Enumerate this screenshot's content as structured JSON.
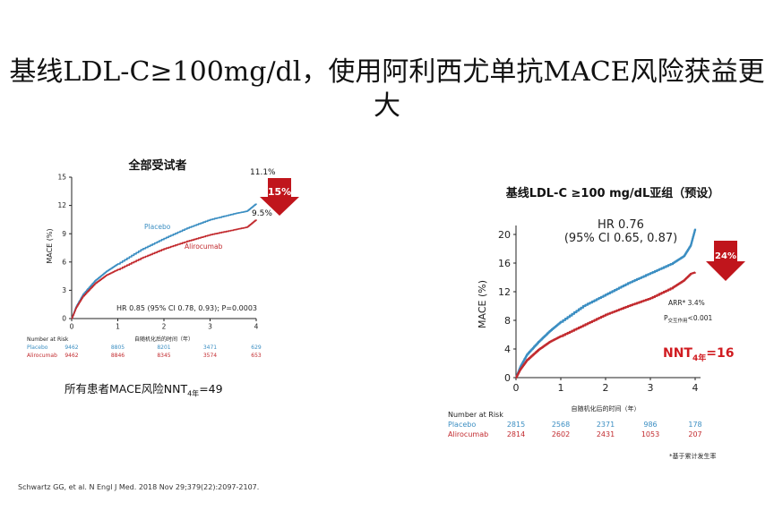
{
  "title": {
    "line1": "基线LDL-C≥100mg/dl，使用阿利西尤单抗MACE风险获益更",
    "line2": "大"
  },
  "left_panel": {
    "heading": "全部受试者",
    "nnt_prefix": "所有患者MACE风险NNT",
    "nnt_sub": "4年",
    "nnt_value": "=49"
  },
  "right_panel": {
    "heading": "基线LDL-C ≥100 mg/dL亚组（预设）",
    "arr_label": "ARR* 3.4%",
    "p_prefix": "P",
    "p_sub": "交互作用",
    "p_value": "<0.001",
    "nnt_prefix": "NNT",
    "nnt_sub": "4年",
    "nnt_value": "=16",
    "footnote": "*基于累计发生率"
  },
  "reference": "Schwartz GG, et al. N Engl J Med. 2018 Nov 29;379(22):2097-2107.",
  "colors": {
    "placebo": "#3b8ec2",
    "alirocumab": "#c22a2e",
    "arrow": "#c0151c"
  },
  "chart_data": [
    {
      "type": "line",
      "title": "全部受试者",
      "xlabel": "自随机化后的时间（年）",
      "ylabel": "MACE (%)",
      "xlim": [
        0,
        4
      ],
      "ylim": [
        0,
        15
      ],
      "xticks": [
        "0",
        "1",
        "2",
        "3",
        "4"
      ],
      "yticks": [
        "0",
        "3",
        "6",
        "9",
        "12",
        "15"
      ],
      "series": [
        {
          "name": "Placebo",
          "x": [
            0,
            0.1,
            0.25,
            0.5,
            0.75,
            1,
            1.5,
            2,
            2.5,
            3,
            3.5,
            3.8,
            4
          ],
          "values": [
            0,
            1.3,
            2.6,
            4.0,
            5.0,
            5.8,
            7.3,
            8.5,
            9.6,
            10.5,
            11.1,
            11.4,
            12.2
          ]
        },
        {
          "name": "Alirocumab",
          "x": [
            0,
            0.1,
            0.25,
            0.5,
            0.75,
            1,
            1.5,
            2,
            2.5,
            3,
            3.5,
            3.8,
            4
          ],
          "values": [
            0,
            1.2,
            2.4,
            3.7,
            4.6,
            5.2,
            6.4,
            7.4,
            8.2,
            8.9,
            9.4,
            9.7,
            10.5
          ]
        }
      ],
      "end_labels": {
        "placebo": "11.1%",
        "alirocumab": "9.5%"
      },
      "series_labels": [
        "Placebo",
        "Alirocumab"
      ],
      "hr_text": "HR 0.85 (95% CI 0.78, 0.93); P=0.0003",
      "reduction": "15%",
      "risk_table": {
        "header": "Number at Risk",
        "rows": [
          {
            "name": "Placebo",
            "values": [
              "9462",
              "8805",
              "8201",
              "3471",
              "629"
            ]
          },
          {
            "name": "Alirocumab",
            "values": [
              "9462",
              "8846",
              "8345",
              "3574",
              "653"
            ]
          }
        ]
      }
    },
    {
      "type": "line",
      "title": "基线LDL-C ≥100 mg/dL亚组（预设）",
      "xlabel": "自随机化后的时间（年）",
      "ylabel": "MACE (%)",
      "xlim": [
        0,
        4
      ],
      "ylim": [
        0,
        20
      ],
      "xticks": [
        "0",
        "1",
        "2",
        "3",
        "4"
      ],
      "yticks": [
        "0",
        "4",
        "8",
        "12",
        "16",
        "20"
      ],
      "series": [
        {
          "name": "Placebo",
          "x": [
            0,
            0.1,
            0.25,
            0.5,
            0.75,
            1,
            1.5,
            2,
            2.5,
            3,
            3.5,
            3.75,
            3.9,
            4
          ],
          "values": [
            0,
            1.6,
            3.3,
            5.0,
            6.5,
            7.8,
            10.0,
            11.6,
            13.2,
            14.6,
            16.0,
            17.0,
            18.5,
            20.8
          ]
        },
        {
          "name": "Alirocumab",
          "x": [
            0,
            0.1,
            0.25,
            0.5,
            0.75,
            1,
            1.5,
            2,
            2.5,
            3,
            3.5,
            3.75,
            3.9,
            4
          ],
          "values": [
            0,
            1.2,
            2.5,
            3.9,
            5.0,
            5.8,
            7.3,
            8.8,
            10.0,
            11.1,
            12.6,
            13.6,
            14.5,
            14.7
          ]
        }
      ],
      "hr_text_line1": "HR 0.76",
      "hr_text_line2": "(95% CI 0.65, 0.87)",
      "reduction": "24%",
      "risk_table": {
        "header": "Number at Risk",
        "rows": [
          {
            "name": "Placebo",
            "values": [
              "2815",
              "2568",
              "2371",
              "986",
              "178"
            ]
          },
          {
            "name": "Alirocumab",
            "values": [
              "2814",
              "2602",
              "2431",
              "1053",
              "207"
            ]
          }
        ]
      }
    }
  ]
}
